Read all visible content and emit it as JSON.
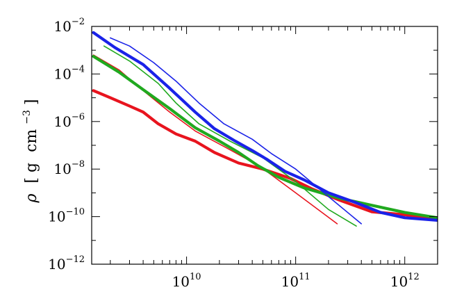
{
  "chart_data": {
    "type": "line",
    "title": "",
    "xlabel": "",
    "ylabel": {
      "symbol": "ρ",
      "bracket_open": "[",
      "unit_g": "g",
      "unit_cm": "cm",
      "unit_exp": "−3",
      "bracket_close": "]"
    },
    "x_scale": "log",
    "y_scale": "log",
    "xlim": [
      1350000000.0,
      2000000000000.0
    ],
    "ylim": [
      1e-12,
      0.01
    ],
    "grid": false,
    "x_ticks": [
      {
        "value": 10000000000.0,
        "base": "10",
        "exp": "10"
      },
      {
        "value": 100000000000.0,
        "base": "10",
        "exp": "11"
      },
      {
        "value": 1000000000000.0,
        "base": "10",
        "exp": "12"
      }
    ],
    "y_ticks": [
      {
        "value": 0.01,
        "base": "10",
        "exp": "−2"
      },
      {
        "value": 0.0001,
        "base": "10",
        "exp": "−4"
      },
      {
        "value": 1e-06,
        "base": "10",
        "exp": "−6"
      },
      {
        "value": 1e-08,
        "base": "10",
        "exp": "−8"
      },
      {
        "value": 1e-10,
        "base": "10",
        "exp": "−10"
      },
      {
        "value": 1e-12,
        "base": "10",
        "exp": "−12"
      }
    ],
    "series": [
      {
        "color": "#e8141e",
        "width": 1.6,
        "points": [
          [
            1400000000.0,
            0.00063
          ],
          [
            2400000000.0,
            0.00015
          ],
          [
            4000000000.0,
            2e-05
          ],
          [
            7000000000.0,
            2.5e-06
          ],
          [
            12000000000.0,
            4e-07
          ],
          [
            23000000000.0,
            8e-08
          ],
          [
            47000000000.0,
            1.3e-08
          ],
          [
            100000000000.0,
            1e-09
          ],
          [
            240000000000.0,
            5e-11
          ]
        ]
      },
      {
        "color": "#e8141e",
        "width": 4.2,
        "points": [
          [
            1400000000.0,
            2e-05
          ],
          [
            2000000000.0,
            1e-05
          ],
          [
            3000000000.0,
            4.5e-06
          ],
          [
            4000000000.0,
            2.5e-06
          ],
          [
            5500000000.0,
            8e-07
          ],
          [
            8000000000.0,
            3e-07
          ],
          [
            12000000000.0,
            1.5e-07
          ],
          [
            18000000000.0,
            5e-08
          ],
          [
            30000000000.0,
            1.8e-08
          ],
          [
            50000000000.0,
            1e-08
          ],
          [
            90000000000.0,
            4e-09
          ],
          [
            140000000000.0,
            1.5e-09
          ],
          [
            250000000000.0,
            5e-10
          ],
          [
            500000000000.0,
            1.6e-10
          ],
          [
            1000000000000.0,
            1.2e-10
          ],
          [
            2000000000000.0,
            8e-11
          ]
        ]
      },
      {
        "color": "#20a91f",
        "width": 1.6,
        "points": [
          [
            1750000000.0,
            0.0015
          ],
          [
            3000000000.0,
            0.00035
          ],
          [
            5500000000.0,
            4e-05
          ],
          [
            8000000000.0,
            6e-06
          ],
          [
            13000000000.0,
            8e-07
          ],
          [
            25000000000.0,
            1.5e-07
          ],
          [
            50000000000.0,
            3e-08
          ],
          [
            100000000000.0,
            3e-09
          ],
          [
            200000000000.0,
            2e-10
          ],
          [
            360000000000.0,
            4e-11
          ]
        ]
      },
      {
        "color": "#20a91f",
        "width": 4.2,
        "points": [
          [
            1400000000.0,
            0.00055
          ],
          [
            2400000000.0,
            0.00012
          ],
          [
            4000000000.0,
            2.2e-05
          ],
          [
            7000000000.0,
            3.5e-06
          ],
          [
            12000000000.0,
            5.5e-07
          ],
          [
            20000000000.0,
            1.5e-07
          ],
          [
            30000000000.0,
            5e-08
          ],
          [
            45000000000.0,
            1.4e-08
          ],
          [
            70000000000.0,
            4.5e-09
          ],
          [
            120000000000.0,
            1.6e-09
          ],
          [
            250000000000.0,
            6e-10
          ],
          [
            500000000000.0,
            3e-10
          ],
          [
            1000000000000.0,
            1.5e-10
          ],
          [
            2000000000000.0,
            9e-11
          ]
        ]
      },
      {
        "color": "#1a22e8",
        "width": 1.6,
        "points": [
          [
            2000000000.0,
            0.0033
          ],
          [
            3000000000.0,
            0.0015
          ],
          [
            5000000000.0,
            0.0003
          ],
          [
            8000000000.0,
            5e-05
          ],
          [
            13000000000.0,
            6e-06
          ],
          [
            22000000000.0,
            8e-07
          ],
          [
            40000000000.0,
            1.8e-07
          ],
          [
            60000000000.0,
            4.5e-08
          ],
          [
            100000000000.0,
            1e-08
          ],
          [
            200000000000.0,
            7e-10
          ],
          [
            400000000000.0,
            5e-11
          ]
        ]
      },
      {
        "color": "#1a22e8",
        "width": 4.2,
        "points": [
          [
            1400000000.0,
            0.0055
          ],
          [
            2200000000.0,
            0.0013
          ],
          [
            4000000000.0,
            0.00025
          ],
          [
            7000000000.0,
            2.5e-05
          ],
          [
            12000000000.0,
            2.5e-06
          ],
          [
            18000000000.0,
            5e-07
          ],
          [
            28000000000.0,
            1.5e-07
          ],
          [
            40000000000.0,
            6e-08
          ],
          [
            55000000000.0,
            2.5e-08
          ],
          [
            80000000000.0,
            8e-09
          ],
          [
            120000000000.0,
            3.5e-09
          ],
          [
            200000000000.0,
            1e-09
          ],
          [
            350000000000.0,
            4e-10
          ],
          [
            600000000000.0,
            1.5e-10
          ],
          [
            1000000000000.0,
            9e-11
          ],
          [
            2000000000000.0,
            7e-11
          ]
        ]
      }
    ]
  }
}
